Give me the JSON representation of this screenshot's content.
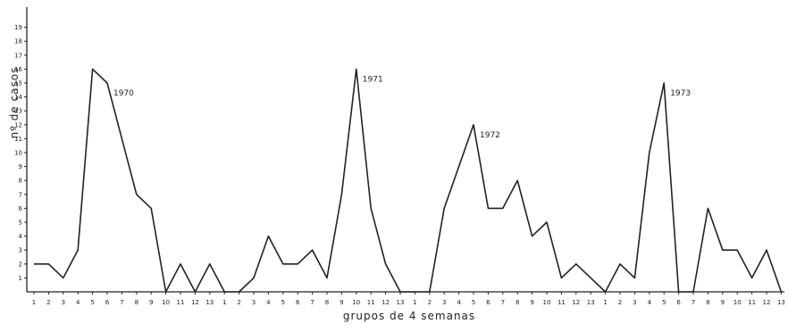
{
  "chart_data": {
    "type": "line",
    "xlabel": "grupos de 4 semanas",
    "ylabel": "nº de casos",
    "ylim": [
      0,
      19
    ],
    "yticks": [
      1,
      2,
      3,
      4,
      5,
      6,
      7,
      8,
      9,
      10,
      11,
      12,
      13,
      14,
      15,
      16,
      17,
      18,
      19
    ],
    "x": [
      "1",
      "2",
      "3",
      "4",
      "5",
      "6",
      "7",
      "8",
      "9",
      "10",
      "11",
      "12",
      "13",
      "1",
      "2",
      "3",
      "4",
      "5",
      "6",
      "7",
      "8",
      "9",
      "10",
      "11",
      "12",
      "13",
      "1",
      "2",
      "3",
      "4",
      "5",
      "6",
      "7",
      "8",
      "9",
      "10",
      "11",
      "12",
      "13",
      "1",
      "2",
      "3",
      "4",
      "5",
      "6",
      "7",
      "8",
      "9",
      "10",
      "11",
      "12",
      "13"
    ],
    "values": [
      2,
      2,
      1,
      3,
      16,
      15,
      11,
      7,
      6,
      0,
      2,
      0,
      2,
      0,
      0,
      1,
      4,
      2,
      2,
      3,
      1,
      7,
      16,
      6,
      2,
      0,
      0,
      0,
      6,
      9,
      12,
      6,
      6,
      8,
      4,
      5,
      1,
      2,
      1,
      0,
      2,
      1,
      10,
      15,
      0,
      0,
      6,
      3,
      3,
      1,
      3,
      0
    ],
    "annotations": [
      {
        "text": "1970",
        "index": 5
      },
      {
        "text": "1971",
        "index": 22
      },
      {
        "text": "1972",
        "index": 30
      },
      {
        "text": "1973",
        "index": 43
      }
    ],
    "grid": false,
    "colors": {
      "line": "#222222",
      "axis": "#222222"
    }
  }
}
